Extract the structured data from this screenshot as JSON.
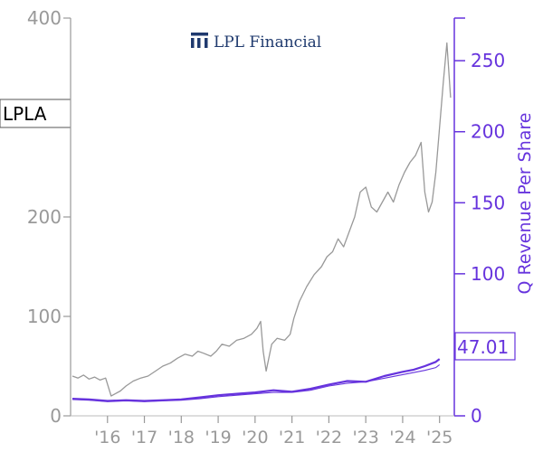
{
  "chart_data": {
    "type": "line",
    "ticker": "LPLA",
    "logo_text": "LPL Financial",
    "left_axis": {
      "ylim": [
        0,
        400
      ],
      "ticks": [
        0,
        100,
        200,
        400
      ],
      "tick_labels": [
        "0",
        "100",
        "200",
        "400"
      ],
      "color": "#999999"
    },
    "right_axis": {
      "label": "Q Revenue Per Share",
      "ylim": [
        0,
        280
      ],
      "ticks": [
        0,
        50,
        100,
        150,
        200,
        250
      ],
      "tick_labels": [
        "0",
        "50",
        "100",
        "150",
        "200",
        "250"
      ],
      "color": "#6633dd"
    },
    "x_axis": {
      "xlim": [
        2015.0,
        2025.4
      ],
      "ticks": [
        2016,
        2017,
        2018,
        2019,
        2020,
        2021,
        2022,
        2023,
        2024,
        2025
      ],
      "tick_labels": [
        "'16",
        "'17",
        "'18",
        "'19",
        "'20",
        "'21",
        "'22",
        "'23",
        "'24",
        "'25"
      ]
    },
    "last_value_label": "47.01",
    "series": [
      {
        "axis": "left",
        "color": "#999999",
        "x": [
          2015.05,
          2015.2,
          2015.35,
          2015.5,
          2015.65,
          2015.8,
          2015.95,
          2016.1,
          2016.2,
          2016.35,
          2016.5,
          2016.7,
          2016.9,
          2017.1,
          2017.3,
          2017.5,
          2017.7,
          2017.9,
          2018.1,
          2018.3,
          2018.45,
          2018.6,
          2018.8,
          2018.95,
          2019.1,
          2019.3,
          2019.5,
          2019.7,
          2019.9,
          2020.05,
          2020.15,
          2020.22,
          2020.3,
          2020.45,
          2020.6,
          2020.8,
          2020.95,
          2021.05,
          2021.2,
          2021.4,
          2021.6,
          2021.8,
          2021.95,
          2022.1,
          2022.25,
          2022.4,
          2022.55,
          2022.7,
          2022.85,
          2023.0,
          2023.15,
          2023.3,
          2023.45,
          2023.6,
          2023.75,
          2023.9,
          2024.05,
          2024.2,
          2024.35,
          2024.5,
          2024.6,
          2024.7,
          2024.8,
          2024.9,
          2025.0,
          2025.1,
          2025.2,
          2025.3
        ],
        "values": [
          40,
          38,
          41,
          37,
          39,
          36,
          38,
          20,
          22,
          25,
          30,
          35,
          38,
          40,
          45,
          50,
          53,
          58,
          62,
          60,
          65,
          63,
          60,
          65,
          72,
          70,
          76,
          78,
          82,
          88,
          95,
          65,
          45,
          72,
          78,
          76,
          82,
          98,
          115,
          130,
          142,
          150,
          160,
          165,
          178,
          170,
          185,
          200,
          225,
          230,
          210,
          205,
          215,
          225,
          215,
          232,
          245,
          255,
          262,
          275,
          225,
          205,
          215,
          245,
          290,
          335,
          375,
          320
        ]
      },
      {
        "axis": "right",
        "color": "#6633dd",
        "x": [
          2015.05,
          2015.5,
          2016.0,
          2016.5,
          2017.0,
          2017.5,
          2018.0,
          2018.5,
          2019.0,
          2019.5,
          2020.0,
          2020.5,
          2021.0,
          2021.5,
          2022.0,
          2022.5,
          2023.0,
          2023.5,
          2024.0,
          2024.3,
          2024.6,
          2024.9,
          2025.0
        ],
        "values": [
          12,
          11.5,
          10.5,
          11,
          10.5,
          11,
          11.5,
          13,
          14.5,
          15.5,
          16.5,
          18,
          17,
          19,
          22,
          24.5,
          24,
          28,
          31,
          32.5,
          35,
          38,
          40
        ]
      },
      {
        "axis": "right",
        "color": "#6633dd",
        "x": [
          2015.05,
          2015.5,
          2016.0,
          2016.5,
          2017.0,
          2017.5,
          2018.0,
          2018.5,
          2019.0,
          2019.5,
          2020.0,
          2020.5,
          2021.0,
          2021.5,
          2022.0,
          2022.5,
          2023.0,
          2023.5,
          2024.0,
          2024.3,
          2024.6,
          2024.9,
          2025.0
        ],
        "values": [
          11.5,
          11,
          10,
          10.5,
          10,
          10.5,
          11,
          12,
          13.5,
          14.5,
          15.5,
          16.5,
          16.5,
          18,
          21,
          23,
          24,
          26.5,
          29,
          30.5,
          32,
          34,
          36
        ]
      }
    ]
  }
}
